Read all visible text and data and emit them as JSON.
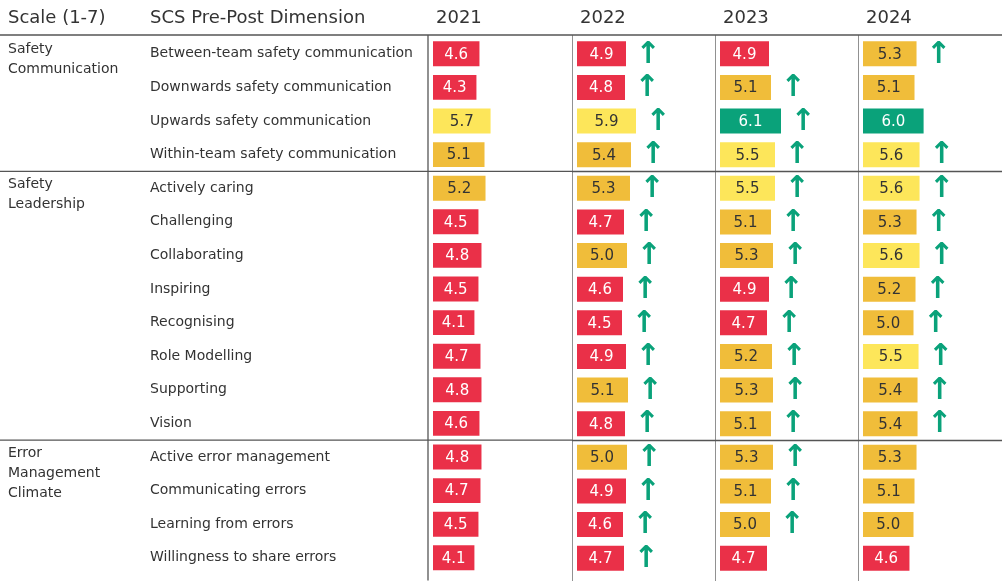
{
  "chart_data": [
    {
      "type": "bar",
      "orientation": "horizontal",
      "title": "2021",
      "subtitle": "Scale (1-7)",
      "ylabel": "SCS Pre-Post Dimension",
      "tick_labels": "y",
      "categories": [
        "Between-team safety communication",
        "Downwards safety communication",
        "Upwards safety communication",
        "Within-team safety communication",
        "Actively caring",
        "Challenging",
        "Collaborating",
        "Inspiring",
        "Recognising",
        "Role Modelling",
        "Supporting",
        "Vision",
        "Active error management",
        "Communicating errors",
        "Learning from errors",
        "Willingness to share errors"
      ],
      "values": [
        4.6,
        4.3,
        5.7,
        5.1,
        5.2,
        4.5,
        4.8,
        4.5,
        4.1,
        4.7,
        4.8,
        4.6,
        4.8,
        4.7,
        4.5,
        4.1
      ],
      "value_labels": [
        "4.6",
        "4.3",
        "5.7",
        "5.1",
        "5.2",
        "4.5",
        "4.8",
        "4.5",
        "4.1",
        "4.7",
        "4.8",
        "4.6",
        "4.8",
        "4.7",
        "4.5",
        "4.1"
      ],
      "colors": [
        "#ea3048",
        "#ea3048",
        "#fde65a",
        "#f0bd3a",
        "#f0bd3a",
        "#ea3048",
        "#ea3048",
        "#ea3048",
        "#ea3048",
        "#ea3048",
        "#ea3048",
        "#ea3048",
        "#ea3048",
        "#ea3048",
        "#ea3048",
        "#ea3048"
      ],
      "annotations": [
        "Safety Communication",
        "Safety Leadership",
        "Error Management Climate"
      ]
    },
    {
      "type": "bar",
      "orientation": "horizontal",
      "title": "2022",
      "tick_labels": false,
      "categories": [
        "Between-team safety communication",
        "Downwards safety communication",
        "Upwards safety communication",
        "Within-team safety communication",
        "Actively caring",
        "Challenging",
        "Collaborating",
        "Inspiring",
        "Recognising",
        "Role Modelling",
        "Supporting",
        "Vision",
        "Active error management",
        "Communicating errors",
        "Learning from errors",
        "Willingness to share errors"
      ],
      "values": [
        4.9,
        4.8,
        5.9,
        5.4,
        5.3,
        4.7,
        5.0,
        4.6,
        4.5,
        4.9,
        5.1,
        4.8,
        5.0,
        4.9,
        4.6,
        4.7
      ],
      "value_labels": [
        "4.9",
        "4.8",
        "5.9",
        "5.4",
        "5.3",
        "4.7",
        "5.0",
        "4.6",
        "4.5",
        "4.9",
        "5.1",
        "4.8",
        "5.0",
        "4.9",
        "4.6",
        "4.7"
      ],
      "colors": [
        "#ea3048",
        "#ea3048",
        "#fde65a",
        "#f0bd3a",
        "#f0bd3a",
        "#ea3048",
        "#f0bd3a",
        "#ea3048",
        "#ea3048",
        "#ea3048",
        "#f0bd3a",
        "#ea3048",
        "#f0bd3a",
        "#ea3048",
        "#ea3048",
        "#ea3048"
      ],
      "annotations": [
        {
          "text": "↑",
          "x": 4.9,
          "y": "Between-team safety communication"
        },
        {
          "text": "↑",
          "x": 4.8,
          "y": "Downwards safety communication"
        },
        {
          "text": "↑",
          "x": 5.9,
          "y": "Upwards safety communication"
        },
        {
          "text": "↑",
          "x": 5.4,
          "y": "Within-team safety communication"
        },
        {
          "text": "↑",
          "x": 5.3,
          "y": "Actively caring"
        },
        {
          "text": "↑",
          "x": 4.7,
          "y": "Challenging"
        },
        {
          "text": "↑",
          "x": 5.0,
          "y": "Collaborating"
        },
        {
          "text": "↑",
          "x": 4.6,
          "y": "Inspiring"
        },
        {
          "text": "↑",
          "x": 4.5,
          "y": "Recognising"
        },
        {
          "text": "↑",
          "x": 4.9,
          "y": "Role Modelling"
        },
        {
          "text": "↑",
          "x": 5.1,
          "y": "Supporting"
        },
        {
          "text": "↑",
          "x": 4.8,
          "y": "Vision"
        },
        {
          "text": "↑",
          "x": 5.0,
          "y": "Active error management"
        },
        {
          "text": "↑",
          "x": 4.9,
          "y": "Communicating errors"
        },
        {
          "text": "↑",
          "x": 4.6,
          "y": "Learning from errors"
        },
        {
          "text": "↑",
          "x": 4.7,
          "y": "Willingness to share errors"
        }
      ]
    },
    {
      "type": "bar",
      "orientation": "horizontal",
      "title": "2023",
      "tick_labels": false,
      "categories": [
        "Between-team safety communication",
        "Downwards safety communication",
        "Upwards safety communication",
        "Within-team safety communication",
        "Actively caring",
        "Challenging",
        "Collaborating",
        "Inspiring",
        "Recognising",
        "Role Modelling",
        "Supporting",
        "Vision",
        "Active error management",
        "Communicating errors",
        "Learning from errors",
        "Willingness to share errors"
      ],
      "values": [
        4.9,
        5.1,
        6.1,
        5.5,
        5.5,
        5.1,
        5.3,
        4.9,
        4.7,
        5.2,
        5.3,
        5.1,
        5.3,
        5.1,
        5.0,
        4.7
      ],
      "value_labels": [
        "4.9",
        "5.1",
        "6.1",
        "5.5",
        "5.5",
        "5.1",
        "5.3",
        "4.9",
        "4.7",
        "5.2",
        "5.3",
        "5.1",
        "5.3",
        "5.1",
        "5.0",
        "4.7"
      ],
      "colors": [
        "#ea3048",
        "#f0bd3a",
        "#0aa27a",
        "#fde65a",
        "#fde65a",
        "#f0bd3a",
        "#f0bd3a",
        "#ea3048",
        "#ea3048",
        "#f0bd3a",
        "#f0bd3a",
        "#f0bd3a",
        "#f0bd3a",
        "#f0bd3a",
        "#f0bd3a",
        "#ea3048"
      ],
      "annotations": [
        {
          "text": "↑",
          "x": 5.1,
          "y": "Downwards safety communication"
        },
        {
          "text": "↑",
          "x": 6.1,
          "y": "Upwards safety communication"
        },
        {
          "text": "↑",
          "x": 5.5,
          "y": "Within-team safety communication"
        },
        {
          "text": "↑",
          "x": 5.5,
          "y": "Actively caring"
        },
        {
          "text": "↑",
          "x": 5.1,
          "y": "Challenging"
        },
        {
          "text": "↑",
          "x": 5.3,
          "y": "Collaborating"
        },
        {
          "text": "↑",
          "x": 4.9,
          "y": "Inspiring"
        },
        {
          "text": "↑",
          "x": 4.7,
          "y": "Recognising"
        },
        {
          "text": "↑",
          "x": 5.2,
          "y": "Role Modelling"
        },
        {
          "text": "↑",
          "x": 5.3,
          "y": "Supporting"
        },
        {
          "text": "↑",
          "x": 5.1,
          "y": "Vision"
        },
        {
          "text": "↑",
          "x": 5.3,
          "y": "Active error management"
        },
        {
          "text": "↑",
          "x": 5.1,
          "y": "Communicating errors"
        },
        {
          "text": "↑",
          "x": 5.0,
          "y": "Learning from errors"
        }
      ]
    },
    {
      "type": "bar",
      "orientation": "horizontal",
      "title": "2024",
      "tick_labels": false,
      "categories": [
        "Between-team safety communication",
        "Downwards safety communication",
        "Upwards safety communication",
        "Within-team safety communication",
        "Actively caring",
        "Challenging",
        "Collaborating",
        "Inspiring",
        "Recognising",
        "Role Modelling",
        "Supporting",
        "Vision",
        "Active error management",
        "Communicating errors",
        "Learning from errors",
        "Willingness to share errors"
      ],
      "values": [
        5.3,
        5.1,
        6.0,
        5.6,
        5.6,
        5.3,
        5.6,
        5.2,
        5.0,
        5.5,
        5.4,
        5.4,
        5.3,
        5.1,
        5.0,
        4.6
      ],
      "value_labels": [
        "5.3",
        "5.1",
        "6.0",
        "5.6",
        "5.6",
        "5.3",
        "5.6",
        "5.2",
        "5.0",
        "5.5",
        "5.4",
        "5.4",
        "5.3",
        "5.1",
        "5.0",
        "4.6"
      ],
      "colors": [
        "#f0bd3a",
        "#f0bd3a",
        "#0aa27a",
        "#fde65a",
        "#fde65a",
        "#f0bd3a",
        "#fde65a",
        "#f0bd3a",
        "#f0bd3a",
        "#fde65a",
        "#f0bd3a",
        "#f0bd3a",
        "#f0bd3a",
        "#f0bd3a",
        "#f0bd3a",
        "#ea3048"
      ],
      "annotations": [
        {
          "text": "↑",
          "x": 5.3,
          "y": "Between-team safety communication"
        },
        {
          "text": "↑",
          "x": 5.6,
          "y": "Within-team safety communication"
        },
        {
          "text": "↑",
          "x": 5.6,
          "y": "Actively caring"
        },
        {
          "text": "↑",
          "x": 5.3,
          "y": "Challenging"
        },
        {
          "text": "↑",
          "x": 5.6,
          "y": "Collaborating"
        },
        {
          "text": "↑",
          "x": 5.2,
          "y": "Inspiring"
        },
        {
          "text": "↑",
          "x": 5.0,
          "y": "Recognising"
        },
        {
          "text": "↑",
          "x": 5.5,
          "y": "Role Modelling"
        },
        {
          "text": "↑",
          "x": 5.4,
          "y": "Supporting"
        },
        {
          "text": "↑",
          "x": 5.4,
          "y": "Vision"
        }
      ]
    }
  ]
}
